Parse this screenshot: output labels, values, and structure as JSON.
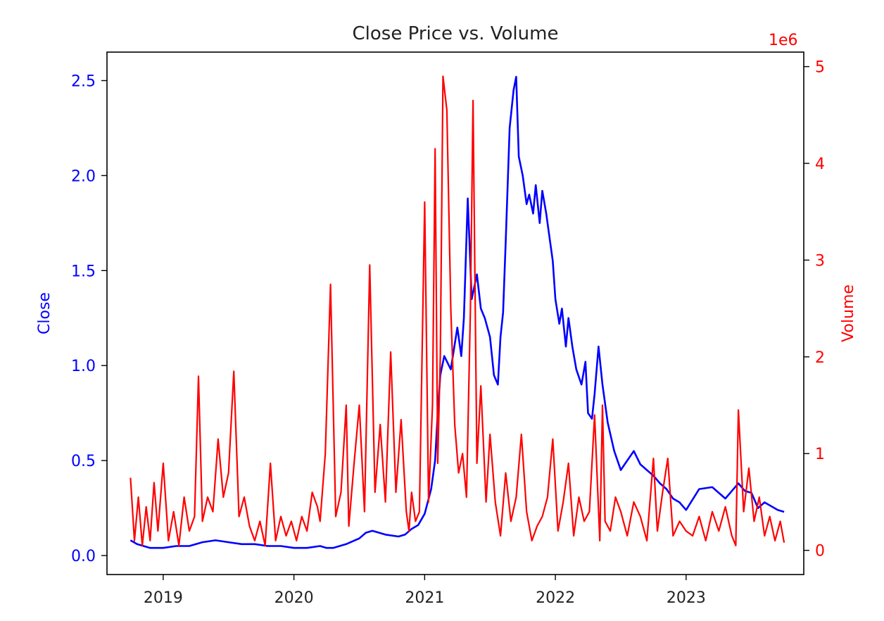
{
  "chart_data": {
    "type": "line",
    "title": "Close Price vs. Volume",
    "xlabel": "",
    "x_ticks": [
      "2019",
      "2020",
      "2021",
      "2022",
      "2023"
    ],
    "x_tick_values": [
      2019.0,
      2020.0,
      2021.0,
      2022.0,
      2023.0
    ],
    "xlim": [
      2018.57,
      2023.9
    ],
    "left_axis": {
      "label": "Close",
      "color": "#0000ff",
      "ylim": [
        -0.1,
        2.65
      ],
      "ticks": [
        "0.0",
        "0.5",
        "1.0",
        "1.5",
        "2.0",
        "2.5"
      ],
      "tick_values": [
        0.0,
        0.5,
        1.0,
        1.5,
        2.0,
        2.5
      ]
    },
    "right_axis": {
      "label": "Volume",
      "color": "#ff0000",
      "offset_text": "1e6",
      "ylim": [
        -0.25,
        5.15
      ],
      "ticks": [
        "0",
        "1",
        "2",
        "3",
        "4",
        "5"
      ],
      "tick_values": [
        0,
        1,
        2,
        3,
        4,
        5
      ]
    },
    "series": [
      {
        "name": "Close",
        "axis": "left",
        "color": "#0000ff",
        "x": [
          2018.75,
          2018.8,
          2018.9,
          2019.0,
          2019.1,
          2019.2,
          2019.3,
          2019.4,
          2019.5,
          2019.6,
          2019.7,
          2019.8,
          2019.9,
          2020.0,
          2020.1,
          2020.2,
          2020.25,
          2020.3,
          2020.4,
          2020.5,
          2020.55,
          2020.6,
          2020.7,
          2020.8,
          2020.85,
          2020.9,
          2020.95,
          2021.0,
          2021.05,
          2021.08,
          2021.1,
          2021.12,
          2021.15,
          2021.2,
          2021.25,
          2021.28,
          2021.3,
          2021.33,
          2021.36,
          2021.4,
          2021.43,
          2021.46,
          2021.5,
          2021.53,
          2021.56,
          2021.58,
          2021.6,
          2021.62,
          2021.65,
          2021.68,
          2021.7,
          2021.72,
          2021.75,
          2021.78,
          2021.8,
          2021.83,
          2021.85,
          2021.88,
          2021.9,
          2021.93,
          2021.95,
          2021.98,
          2022.0,
          2022.03,
          2022.05,
          2022.08,
          2022.1,
          2022.13,
          2022.16,
          2022.2,
          2022.23,
          2022.25,
          2022.28,
          2022.3,
          2022.33,
          2022.36,
          2022.4,
          2022.45,
          2022.5,
          2022.55,
          2022.6,
          2022.65,
          2022.7,
          2022.75,
          2022.8,
          2022.85,
          2022.9,
          2022.95,
          2023.0,
          2023.1,
          2023.2,
          2023.3,
          2023.35,
          2023.4,
          2023.45,
          2023.5,
          2023.55,
          2023.6,
          2023.65,
          2023.7,
          2023.75
        ],
        "values": [
          0.08,
          0.06,
          0.04,
          0.04,
          0.05,
          0.05,
          0.07,
          0.08,
          0.07,
          0.06,
          0.06,
          0.05,
          0.05,
          0.04,
          0.04,
          0.05,
          0.04,
          0.04,
          0.06,
          0.09,
          0.12,
          0.13,
          0.11,
          0.1,
          0.11,
          0.14,
          0.16,
          0.22,
          0.35,
          0.5,
          0.75,
          0.95,
          1.05,
          0.98,
          1.2,
          1.05,
          1.25,
          1.88,
          1.35,
          1.48,
          1.3,
          1.25,
          1.15,
          0.95,
          0.9,
          1.15,
          1.28,
          1.65,
          2.25,
          2.45,
          2.52,
          2.1,
          2.0,
          1.85,
          1.9,
          1.8,
          1.95,
          1.75,
          1.92,
          1.8,
          1.7,
          1.55,
          1.35,
          1.22,
          1.3,
          1.1,
          1.25,
          1.1,
          0.98,
          0.9,
          1.02,
          0.75,
          0.72,
          0.85,
          1.1,
          0.9,
          0.7,
          0.55,
          0.45,
          0.5,
          0.55,
          0.48,
          0.45,
          0.42,
          0.38,
          0.35,
          0.3,
          0.28,
          0.24,
          0.35,
          0.36,
          0.3,
          0.34,
          0.38,
          0.34,
          0.33,
          0.25,
          0.28,
          0.26,
          0.24,
          0.23
        ]
      },
      {
        "name": "Volume",
        "axis": "right",
        "color": "#ff0000",
        "x": [
          2018.75,
          2018.78,
          2018.81,
          2018.84,
          2018.87,
          2018.9,
          2018.93,
          2018.96,
          2019.0,
          2019.04,
          2019.08,
          2019.12,
          2019.16,
          2019.2,
          2019.24,
          2019.27,
          2019.3,
          2019.34,
          2019.38,
          2019.42,
          2019.46,
          2019.5,
          2019.54,
          2019.58,
          2019.62,
          2019.66,
          2019.7,
          2019.74,
          2019.78,
          2019.82,
          2019.86,
          2019.9,
          2019.94,
          2019.98,
          2020.02,
          2020.06,
          2020.1,
          2020.14,
          2020.18,
          2020.2,
          2020.24,
          2020.28,
          2020.32,
          2020.36,
          2020.4,
          2020.42,
          2020.46,
          2020.5,
          2020.54,
          2020.58,
          2020.62,
          2020.66,
          2020.7,
          2020.74,
          2020.78,
          2020.82,
          2020.86,
          2020.88,
          2020.9,
          2020.93,
          2020.96,
          2021.0,
          2021.03,
          2021.06,
          2021.08,
          2021.1,
          2021.12,
          2021.14,
          2021.17,
          2021.2,
          2021.23,
          2021.26,
          2021.29,
          2021.32,
          2021.35,
          2021.37,
          2021.4,
          2021.43,
          2021.47,
          2021.5,
          2021.54,
          2021.58,
          2021.62,
          2021.66,
          2021.7,
          2021.74,
          2021.78,
          2021.82,
          2021.86,
          2021.9,
          2021.94,
          2021.98,
          2022.02,
          2022.06,
          2022.1,
          2022.14,
          2022.18,
          2022.22,
          2022.26,
          2022.3,
          2022.34,
          2022.36,
          2022.38,
          2022.42,
          2022.46,
          2022.5,
          2022.55,
          2022.6,
          2022.65,
          2022.7,
          2022.75,
          2022.78,
          2022.82,
          2022.86,
          2022.9,
          2022.95,
          2023.0,
          2023.05,
          2023.1,
          2023.15,
          2023.2,
          2023.25,
          2023.3,
          2023.35,
          2023.38,
          2023.4,
          2023.44,
          2023.48,
          2023.52,
          2023.56,
          2023.6,
          2023.64,
          2023.68,
          2023.72,
          2023.75
        ],
        "values": [
          0.75,
          0.1,
          0.55,
          0.05,
          0.45,
          0.1,
          0.7,
          0.2,
          0.9,
          0.1,
          0.4,
          0.05,
          0.55,
          0.2,
          0.35,
          1.8,
          0.3,
          0.55,
          0.4,
          1.15,
          0.55,
          0.8,
          1.85,
          0.35,
          0.55,
          0.25,
          0.1,
          0.3,
          0.05,
          0.9,
          0.1,
          0.35,
          0.15,
          0.3,
          0.1,
          0.35,
          0.2,
          0.6,
          0.45,
          0.3,
          1.0,
          2.75,
          0.35,
          0.6,
          1.5,
          0.25,
          0.9,
          1.5,
          0.4,
          2.95,
          0.6,
          1.3,
          0.5,
          2.05,
          0.6,
          1.35,
          0.4,
          0.2,
          0.6,
          0.3,
          0.4,
          3.6,
          0.5,
          1.5,
          4.15,
          0.9,
          2.0,
          4.9,
          4.55,
          2.5,
          1.3,
          0.8,
          1.0,
          0.55,
          2.5,
          4.65,
          0.9,
          1.7,
          0.5,
          1.2,
          0.5,
          0.15,
          0.8,
          0.3,
          0.55,
          1.2,
          0.4,
          0.1,
          0.25,
          0.35,
          0.55,
          1.15,
          0.2,
          0.5,
          0.9,
          0.15,
          0.55,
          0.3,
          0.4,
          1.4,
          0.1,
          1.5,
          0.3,
          0.2,
          0.55,
          0.4,
          0.15,
          0.5,
          0.35,
          0.1,
          0.95,
          0.2,
          0.6,
          0.95,
          0.15,
          0.3,
          0.2,
          0.15,
          0.35,
          0.1,
          0.4,
          0.2,
          0.45,
          0.15,
          0.05,
          1.45,
          0.4,
          0.85,
          0.3,
          0.55,
          0.15,
          0.35,
          0.1,
          0.3,
          0.08
        ]
      }
    ]
  }
}
